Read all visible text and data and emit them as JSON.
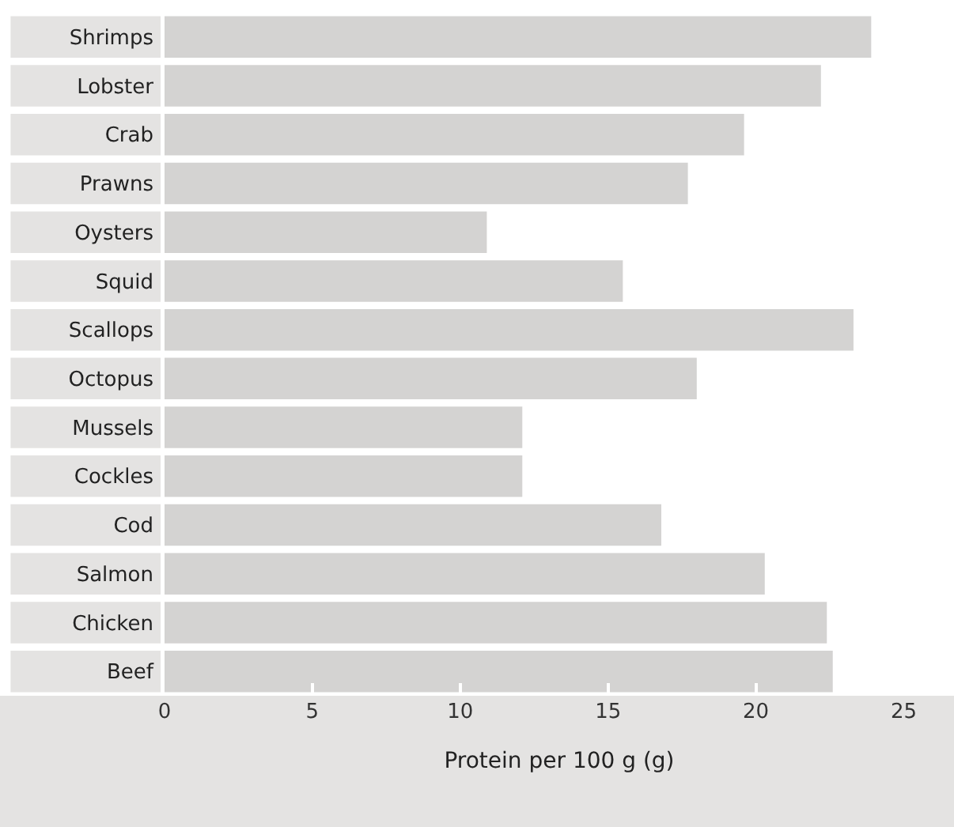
{
  "chart_data": {
    "type": "bar",
    "orientation": "horizontal",
    "xlabel": "Protein per 100 g (g)",
    "categories": [
      "Shrimps",
      "Lobster",
      "Crab",
      "Prawns",
      "Oysters",
      "Squid",
      "Scallops",
      "Octopus",
      "Mussels",
      "Cockles",
      "Cod",
      "Salmon",
      "Chicken",
      "Beef"
    ],
    "values": [
      23.9,
      22.2,
      19.6,
      17.7,
      10.9,
      15.5,
      23.3,
      18.0,
      12.1,
      12.1,
      16.8,
      20.3,
      22.4,
      22.6
    ],
    "color": "#d4d3d2",
    "xlim": [
      0,
      26.7
    ],
    "xticks": [
      0,
      5,
      10,
      15,
      20,
      25
    ]
  }
}
